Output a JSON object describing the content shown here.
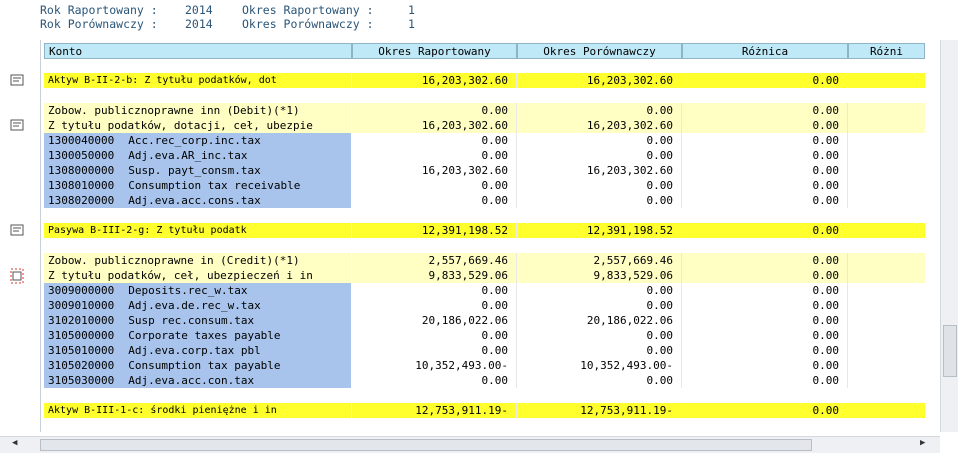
{
  "header": [
    {
      "label": "Rok Raportowany :",
      "value": "2014",
      "label2": "Okres Raportowany :",
      "value2": "1"
    },
    {
      "label": "Rok Porównawczy :",
      "value": "2014",
      "label2": "Okres Porównawczy :",
      "value2": "1"
    }
  ],
  "table": {
    "columns": [
      "Konto",
      "Okres Raportowany",
      "Okres Porównawczy",
      "Różnica",
      "Różni"
    ],
    "groups": [
      {
        "rows": [
          {
            "label": "Aktyw B-II-2-b: Z tytułu podatków, dot",
            "values": [
              "16,203,302.60",
              "16,203,302.60",
              "0.00"
            ]
          }
        ]
      },
      {
        "rows": [
          {
            "label": "Zobow. publicznoprawne inn (Debit)(*1)",
            "values": [
              "0.00",
              "0.00",
              "0.00"
            ]
          },
          {
            "label": "Z tytułu podatków, dotacji, ceł, ubezpie",
            "values": [
              "16,203,302.60",
              "16,203,302.60",
              "0.00"
            ]
          },
          {
            "account": "1300040000",
            "label": "Acc.rec_corp.inc.tax",
            "values": [
              "0.00",
              "0.00",
              "0.00"
            ]
          },
          {
            "account": "1300050000",
            "label": "Adj.eva.AR_inc.tax",
            "values": [
              "0.00",
              "0.00",
              "0.00"
            ]
          },
          {
            "account": "1308000000",
            "label": "Susp. payt_consm.tax",
            "values": [
              "16,203,302.60",
              "16,203,302.60",
              "0.00"
            ]
          },
          {
            "account": "1308010000",
            "label": "Consumption tax receivable",
            "values": [
              "0.00",
              "0.00",
              "0.00"
            ]
          },
          {
            "account": "1308020000",
            "label": "Adj.eva.acc.cons.tax",
            "values": [
              "0.00",
              "0.00",
              "0.00"
            ]
          }
        ]
      },
      {
        "rows": [
          {
            "label": "Pasywa B-III-2-g: Z tytułu podatk",
            "values": [
              "12,391,198.52",
              "12,391,198.52",
              "0.00"
            ]
          }
        ]
      },
      {
        "rows": [
          {
            "label": "Zobow. publicznoprawne in (Credit)(*1)",
            "values": [
              "2,557,669.46",
              "2,557,669.46",
              "0.00"
            ]
          },
          {
            "label": "Z tytułu podatków, ceł, ubezpieczeń i in",
            "values": [
              "9,833,529.06",
              "9,833,529.06",
              "0.00"
            ]
          },
          {
            "account": "3009000000",
            "label": "Deposits.rec_w.tax",
            "values": [
              "0.00",
              "0.00",
              "0.00"
            ]
          },
          {
            "account": "3009010000",
            "label": "Adj.eva.de.rec_w.tax",
            "values": [
              "0.00",
              "0.00",
              "0.00"
            ]
          },
          {
            "account": "3102010000",
            "label": "Susp rec.consum.tax",
            "values": [
              "20,186,022.06",
              "20,186,022.06",
              "0.00"
            ]
          },
          {
            "account": "3105000000",
            "label": "Corporate taxes payable",
            "values": [
              "0.00",
              "0.00",
              "0.00"
            ]
          },
          {
            "account": "3105010000",
            "label": "Adj.eva.corp.tax pbl",
            "values": [
              "0.00",
              "0.00",
              "0.00"
            ]
          },
          {
            "account": "3105020000",
            "label": "Consumption tax payable",
            "values": [
              "10,352,493.00-",
              "10,352,493.00-",
              "0.00"
            ]
          },
          {
            "account": "3105030000",
            "label": "Adj.eva.acc.con.tax",
            "values": [
              "0.00",
              "0.00",
              "0.00"
            ]
          }
        ]
      },
      {
        "rows": [
          {
            "label": "Aktyw B-III-1-c: środki pieniężne i in",
            "values": [
              "12,753,911.19-",
              "12,753,911.19-",
              "0.00"
            ]
          }
        ]
      }
    ]
  }
}
